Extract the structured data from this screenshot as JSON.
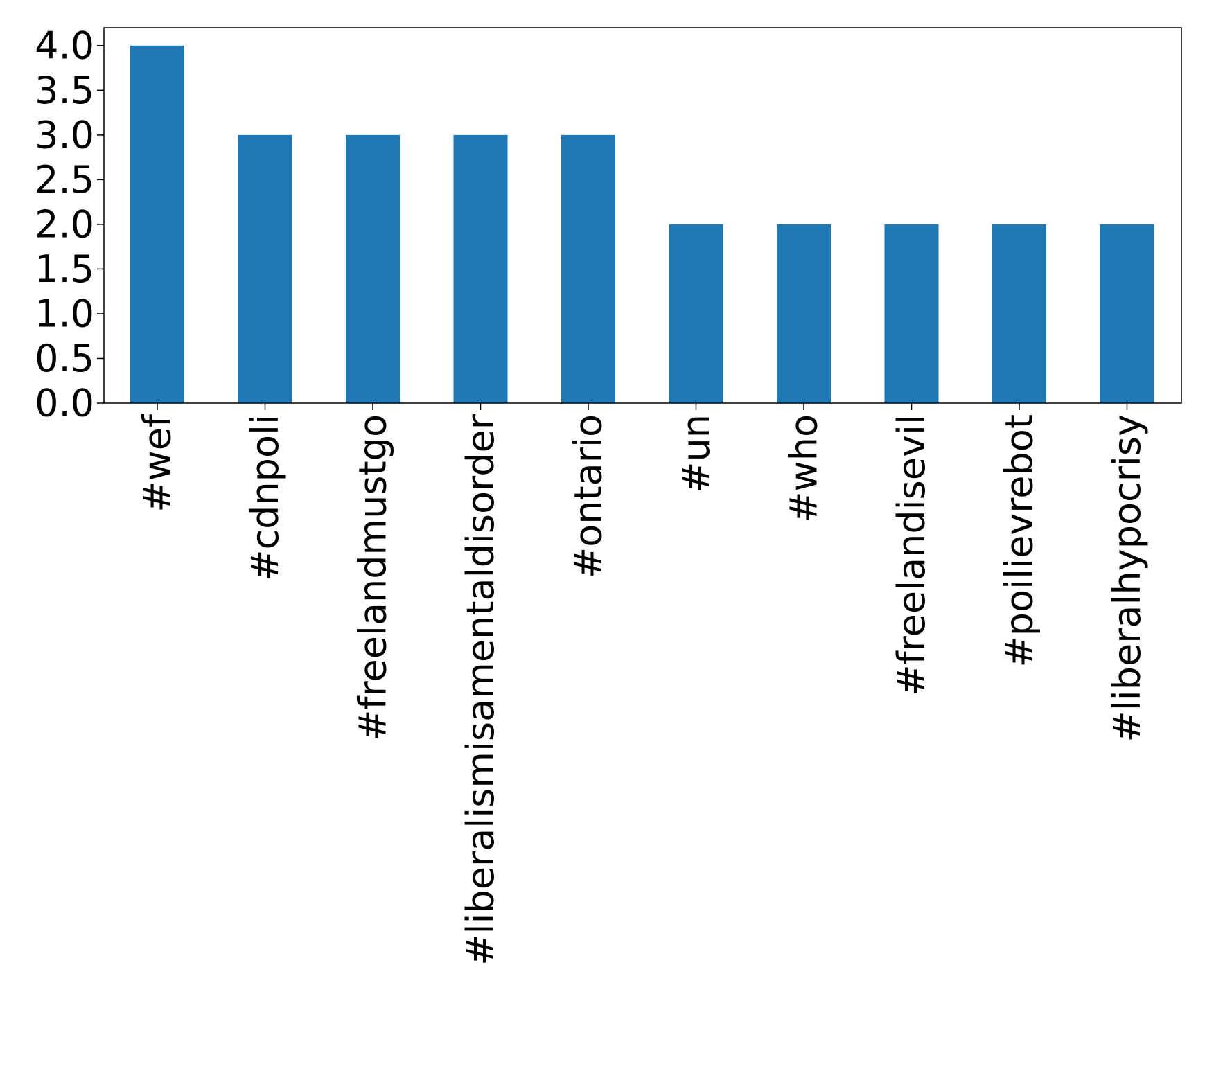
{
  "chart_data": {
    "type": "bar",
    "title": "",
    "xlabel": "",
    "ylabel": "",
    "categories": [
      "#wef",
      "#cdnpoli",
      "#freelandmustgo",
      "#liberalismisamentaldisorder",
      "#ontario",
      "#un",
      "#who",
      "#freelandisevil",
      "#poilievrebot",
      "#liberalhypocrisy"
    ],
    "values": [
      4,
      3,
      3,
      3,
      3,
      2,
      2,
      2,
      2,
      2
    ],
    "ylim": [
      0,
      4.2
    ],
    "yticks": [
      "0.0",
      "0.5",
      "1.0",
      "1.5",
      "2.0",
      "2.5",
      "3.0",
      "3.5",
      "4.0"
    ],
    "bar_color": "#1f77b4",
    "grid": false,
    "legend": "none"
  }
}
